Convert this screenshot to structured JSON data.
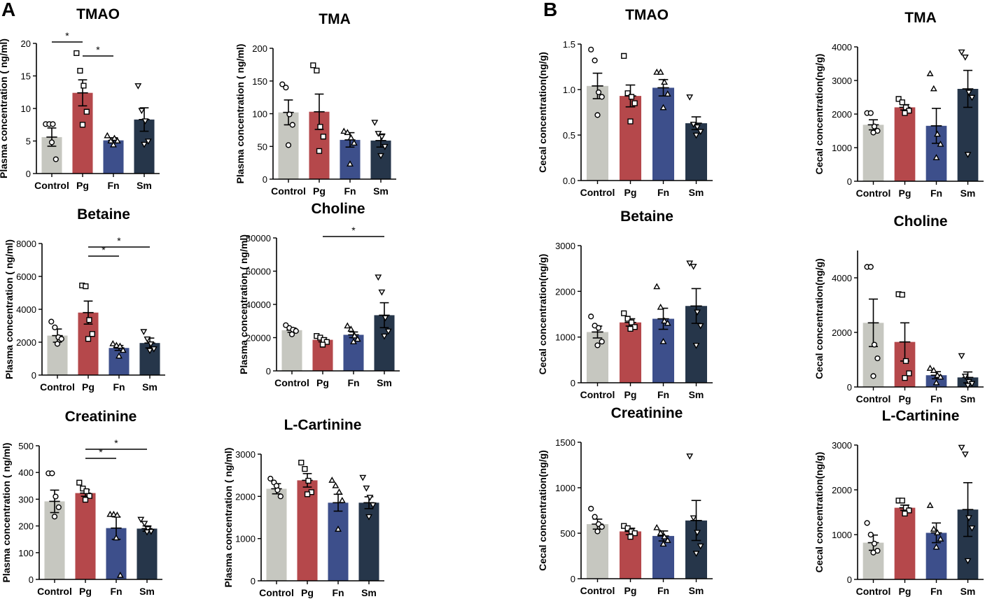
{
  "panels": [
    {
      "letter": "A"
    },
    {
      "letter": "B"
    }
  ],
  "colors": {
    "Control": "#c6c7c0",
    "Pg": "#b5484b",
    "Fn": "#3d4f8b",
    "Sm": "#26364a"
  },
  "chart_data": [
    {
      "type": "bar",
      "panel": "A",
      "title": "TMAO",
      "ylabel": "Plasma concentration ( ng/ml)",
      "categories": [
        "Control",
        "Pg",
        "Fn",
        "Sm"
      ],
      "ylim": [
        0,
        20
      ],
      "yticks": [
        0,
        5,
        10,
        15,
        20
      ],
      "values": [
        5.6,
        12.4,
        5.1,
        8.3
      ],
      "sem": [
        1.4,
        2.0,
        0.4,
        1.8
      ],
      "points": [
        [
          7.6,
          7.6,
          7.6,
          2.2,
          4.8
        ],
        [
          18.5,
          15.8,
          13.5,
          9.5,
          7.5
        ],
        [
          5.8,
          5.0,
          5.4,
          5.0,
          4.4
        ],
        [
          13.5,
          9.7,
          8.1,
          5.0,
          4.5
        ]
      ],
      "markers": [
        "circle",
        "square",
        "triangle",
        "triangle-down"
      ],
      "significance": [
        {
          "from": 0,
          "to": 1,
          "label": "*"
        },
        {
          "from": 1,
          "to": 2,
          "label": "*"
        }
      ]
    },
    {
      "type": "bar",
      "panel": "A",
      "title": "TMA",
      "ylabel": "Plasma concentration ( ng/ml)",
      "categories": [
        "Control",
        "Pg",
        "Fn",
        "Sm"
      ],
      "ylim": [
        0,
        200
      ],
      "yticks": [
        0,
        50,
        100,
        150,
        200
      ],
      "values": [
        102,
        103,
        60,
        59
      ],
      "sem": [
        19,
        27,
        11,
        10
      ],
      "points": [
        [
          145,
          140,
          99,
          83,
          52
        ],
        [
          174,
          166,
          80,
          65,
          43
        ],
        [
          73,
          71,
          63,
          55,
          23
        ],
        [
          87,
          70,
          65,
          50,
          36
        ]
      ],
      "markers": [
        "circle",
        "square",
        "triangle",
        "triangle-down"
      ],
      "significance": []
    },
    {
      "type": "bar",
      "panel": "A",
      "title": "Betaine",
      "ylabel": "Plasma concentration ( ng/ml)",
      "categories": [
        "Control",
        "Pg",
        "Fn",
        "Sm"
      ],
      "ylim": [
        0,
        8000
      ],
      "yticks": [
        0,
        2000,
        4000,
        6000,
        8000
      ],
      "values": [
        2400,
        3800,
        1650,
        1950
      ],
      "sem": [
        400,
        700,
        150,
        300
      ],
      "points": [
        [
          3250,
          2900,
          2300,
          2200,
          1900
        ],
        [
          5450,
          5400,
          3350,
          2500,
          2200
        ],
        [
          1900,
          1800,
          1750,
          1500,
          1150
        ],
        [
          2650,
          2200,
          1900,
          1600,
          1500
        ]
      ],
      "markers": [
        "circle",
        "square",
        "triangle",
        "triangle-down"
      ],
      "significance": [
        {
          "from": 1,
          "to": 2,
          "label": "*"
        },
        {
          "from": 1,
          "to": 3,
          "label": "*"
        }
      ]
    },
    {
      "type": "bar",
      "panel": "A",
      "title": "Choline",
      "ylabel": "Plasma concentration ( ng/ml)",
      "categories": [
        "Control",
        "Pg",
        "Fn",
        "Sm"
      ],
      "ylim": [
        0,
        80000
      ],
      "yticks": [
        0,
        20000,
        40000,
        60000,
        80000
      ],
      "values": [
        24500,
        18700,
        21700,
        33500
      ],
      "sem": [
        1300,
        1200,
        1700,
        7500
      ],
      "points": [
        [
          27500,
          25800,
          24800,
          24000,
          22000
        ],
        [
          21000,
          20000,
          18600,
          17400,
          15800
        ],
        [
          27000,
          25000,
          21000,
          19000,
          17500
        ],
        [
          56500,
          47500,
          32000,
          24000,
          21000
        ]
      ],
      "markers": [
        "circle",
        "square",
        "triangle",
        "triangle-down"
      ],
      "significance": [
        {
          "from": 1,
          "to": 3,
          "label": "*"
        }
      ]
    },
    {
      "type": "bar",
      "panel": "A",
      "title": "Creatinine",
      "ylabel": "Plasma concentration ( ng/ml)",
      "categories": [
        "Control",
        "Pg",
        "Fn",
        "Sm"
      ],
      "ylim": [
        0,
        500
      ],
      "yticks": [
        0,
        100,
        200,
        300,
        400,
        500
      ],
      "values": [
        292,
        323,
        192,
        190
      ],
      "sem": [
        42,
        12,
        42,
        10
      ],
      "points": [
        [
          397,
          397,
          310,
          270,
          235
        ],
        [
          362,
          340,
          330,
          312,
          298
        ],
        [
          243,
          243,
          240,
          15,
          155
        ],
        [
          225,
          210,
          190,
          180,
          178
        ]
      ],
      "markers": [
        "circle",
        "square",
        "triangle",
        "triangle-down"
      ],
      "significance": [
        {
          "from": 1,
          "to": 2,
          "label": "*"
        },
        {
          "from": 1,
          "to": 3,
          "label": "*"
        }
      ]
    },
    {
      "type": "bar",
      "panel": "A",
      "title": "L-Cartinine",
      "ylabel": "Plasma concentration ( ng/ml)",
      "categories": [
        "Control",
        "Pg",
        "Fn",
        "Sm"
      ],
      "ylim": [
        0,
        3000
      ],
      "yticks": [
        0,
        1000,
        2000,
        3000
      ],
      "values": [
        2180,
        2380,
        1850,
        1850
      ],
      "sem": [
        120,
        160,
        200,
        140
      ],
      "points": [
        [
          2420,
          2330,
          2150,
          2000,
          2250
        ],
        [
          2800,
          2650,
          2370,
          2100,
          2050
        ],
        [
          2380,
          2250,
          2100,
          1900,
          1220
        ],
        [
          2450,
          2200,
          1980,
          1800,
          1520
        ]
      ],
      "markers": [
        "circle",
        "square",
        "triangle",
        "triangle-down"
      ],
      "significance": []
    },
    {
      "type": "bar",
      "panel": "B",
      "title": "TMAO",
      "ylabel": "Cecal concentration(ng/g)",
      "categories": [
        "Control",
        "Pg",
        "Fn",
        "Sm"
      ],
      "ylim": [
        0,
        1.5
      ],
      "yticks": [
        "0.0",
        "0.5",
        "1.0",
        "1.5"
      ],
      "values": [
        1.04,
        0.93,
        1.02,
        0.63
      ],
      "sem": [
        0.14,
        0.12,
        0.09,
        0.07
      ],
      "points": [
        [
          1.44,
          1.32,
          0.97,
          0.92,
          0.72
        ],
        [
          1.37,
          0.96,
          0.92,
          0.85,
          0.65
        ],
        [
          1.19,
          1.19,
          1.08,
          0.95,
          0.8
        ],
        [
          0.92,
          0.62,
          0.59,
          0.54,
          0.5
        ]
      ],
      "markers": [
        "circle",
        "square",
        "triangle",
        "triangle-down"
      ],
      "significance": []
    },
    {
      "type": "bar",
      "panel": "B",
      "title": "TMA",
      "ylabel": "Cecal concentration(ng/g)",
      "categories": [
        "Control",
        "Pg",
        "Fn",
        "Sm"
      ],
      "ylim": [
        0,
        4000
      ],
      "yticks": [
        0,
        1000,
        2000,
        3000,
        4000
      ],
      "values": [
        1680,
        2200,
        1650,
        2750
      ],
      "sem": [
        150,
        80,
        520,
        550
      ],
      "points": [
        [
          2030,
          2030,
          1630,
          1500,
          1450
        ],
        [
          2450,
          2350,
          2200,
          2100,
          2030
        ],
        [
          3200,
          2750,
          1400,
          1100,
          700
        ],
        [
          3850,
          3700,
          2650,
          2500,
          800
        ]
      ],
      "markers": [
        "circle",
        "square",
        "triangle",
        "triangle-down"
      ],
      "significance": []
    },
    {
      "type": "bar",
      "panel": "B",
      "title": "Betaine",
      "ylabel": "Cecal concentration(ng/g)",
      "categories": [
        "Control",
        "Pg",
        "Fn",
        "Sm"
      ],
      "ylim": [
        0,
        3000
      ],
      "yticks": [
        0,
        1000,
        2000,
        3000
      ],
      "values": [
        1110,
        1320,
        1400,
        1680
      ],
      "sem": [
        130,
        80,
        230,
        380
      ],
      "points": [
        [
          1450,
          1250,
          1200,
          900,
          820
        ],
        [
          1520,
          1400,
          1320,
          1220,
          1180
        ],
        [
          2100,
          1650,
          1350,
          1300,
          900
        ],
        [
          2620,
          2550,
          1550,
          1250,
          820
        ]
      ],
      "markers": [
        "circle",
        "square",
        "triangle",
        "triangle-down"
      ],
      "significance": []
    },
    {
      "type": "bar",
      "panel": "B",
      "title": "Choline",
      "ylabel": "Cecal concentration(ng/g)",
      "categories": [
        "Control",
        "Pg",
        "Fn",
        "Sm"
      ],
      "ylim": [
        0,
        5000
      ],
      "yticks": [
        0,
        2000,
        4000
      ],
      "values": [
        2350,
        1650,
        430,
        350
      ],
      "sem": [
        870,
        700,
        130,
        200
      ],
      "points": [
        [
          4400,
          4400,
          1550,
          1050,
          400
        ],
        [
          3400,
          3380,
          950,
          500,
          330
        ],
        [
          680,
          600,
          420,
          360,
          150
        ],
        [
          1150,
          400,
          200,
          130,
          60
        ]
      ],
      "markers": [
        "circle",
        "square",
        "triangle",
        "triangle-down"
      ],
      "significance": []
    },
    {
      "type": "bar",
      "panel": "B",
      "title": "Creatinine",
      "ylabel": "Cecal concentration(ng/g)",
      "categories": [
        "Control",
        "Pg",
        "Fn",
        "Sm"
      ],
      "ylim": [
        0,
        1500
      ],
      "yticks": [
        0,
        500,
        1000,
        1500
      ],
      "values": [
        600,
        520,
        470,
        640
      ],
      "sem": [
        55,
        35,
        55,
        220
      ],
      "points": [
        [
          770,
          680,
          600,
          570,
          520
        ],
        [
          580,
          555,
          520,
          500,
          460
        ],
        [
          560,
          500,
          460,
          420,
          380
        ],
        [
          1350,
          670,
          510,
          360,
          280
        ]
      ],
      "markers": [
        "circle",
        "square",
        "triangle",
        "triangle-down"
      ],
      "significance": []
    },
    {
      "type": "bar",
      "panel": "B",
      "title": "L-Cartinine",
      "ylabel": "Cecal concentration(ng/g)",
      "categories": [
        "Control",
        "Pg",
        "Fn",
        "Sm"
      ],
      "ylim": [
        0,
        3000
      ],
      "yticks": [
        0,
        1000,
        2000,
        3000
      ],
      "values": [
        820,
        1600,
        1040,
        1560
      ],
      "sem": [
        170,
        60,
        220,
        600
      ],
      "points": [
        [
          1260,
          1000,
          800,
          640,
          600
        ],
        [
          1760,
          1760,
          1600,
          1540,
          1470
        ],
        [
          1650,
          1120,
          1040,
          900,
          720
        ],
        [
          2950,
          2800,
          1380,
          1150,
          420
        ]
      ],
      "markers": [
        "circle",
        "square",
        "triangle",
        "triangle-down"
      ],
      "significance": []
    }
  ]
}
